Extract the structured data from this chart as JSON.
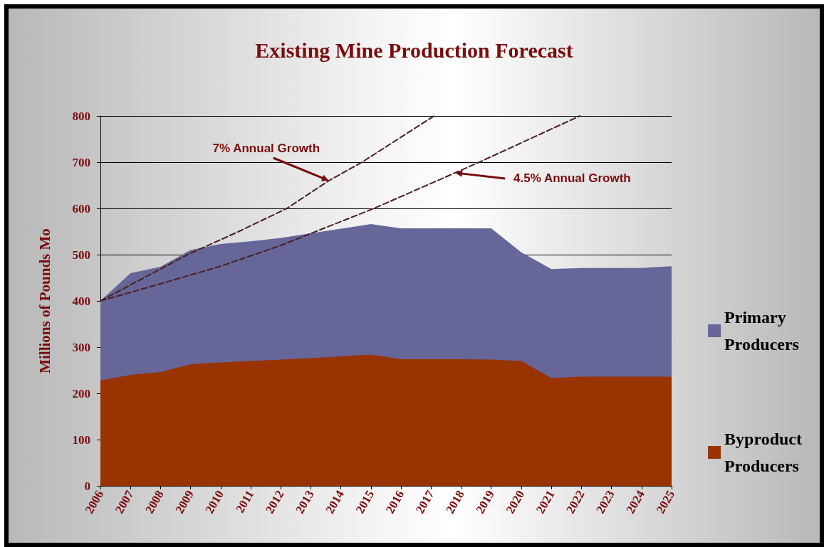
{
  "chart_data": {
    "type": "area",
    "title": "Existing Mine Production Forecast",
    "ylabel": "Millions of Pounds Mo",
    "x": [
      2006,
      2007,
      2008,
      2009,
      2010,
      2011,
      2012,
      2013,
      2014,
      2015,
      2016,
      2017,
      2018,
      2019,
      2020,
      2021,
      2022,
      2023,
      2024,
      2025
    ],
    "xlim": [
      2006,
      2025
    ],
    "xticks": [
      2006,
      2007,
      2008,
      2009,
      2010,
      2011,
      2012,
      2013,
      2014,
      2015,
      2016,
      2017,
      2018,
      2019,
      2020,
      2021,
      2022,
      2023,
      2024,
      2025
    ],
    "ylim": [
      0,
      800
    ],
    "yticks": [
      0,
      100,
      200,
      300,
      400,
      500,
      600,
      700,
      800
    ],
    "stacked": true,
    "grid": "y",
    "legend": "right",
    "marker": "none",
    "series": [
      {
        "name": "Byproduct Producers",
        "color": "#993300",
        "values": [
          228,
          240,
          246,
          263,
          267,
          270,
          273,
          276,
          280,
          284,
          274,
          274,
          274,
          273,
          270,
          233,
          236,
          236,
          236,
          236
        ]
      },
      {
        "name": "Primary Producers",
        "color": "#666699",
        "values": [
          172,
          220,
          228,
          247,
          256,
          259,
          263,
          270,
          276,
          282,
          283,
          283,
          283,
          284,
          235,
          236,
          235,
          235,
          235,
          239
        ]
      },
      {
        "type": "line",
        "color": "#4a1f1f",
        "line_style": "dashed",
        "x": [
          2006,
          2008.9,
          2010.6,
          2012.2,
          2013.6,
          2014.7,
          2017.1
        ],
        "values": [
          400,
          500,
          550,
          600,
          660,
          700,
          800
        ]
      },
      {
        "type": "line",
        "color": "#4a1f1f",
        "line_style": "dashed",
        "x": [
          2006,
          2008,
          2010,
          2012,
          2015.1,
          2017.8,
          2018.6,
          2021.95
        ],
        "values": [
          400,
          437,
          475,
          520,
          600,
          677,
          700,
          800
        ]
      }
    ],
    "annotations": [
      {
        "text": "7% Annual Growth",
        "x": 2013.6,
        "y": 660
      },
      {
        "text": "4.5% Annual Growth",
        "x": 2017.8,
        "y": 677
      }
    ]
  }
}
